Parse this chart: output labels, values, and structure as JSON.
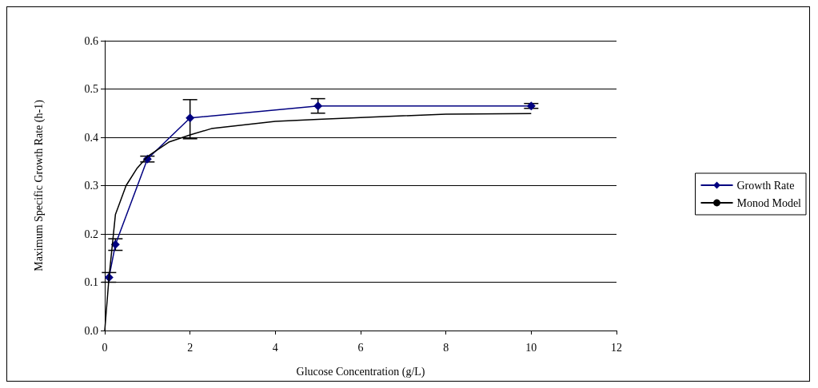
{
  "chart_data": {
    "type": "line",
    "xlabel": "Glucose Concentration (g/L)",
    "ylabel": "Maximum Specific Growth Rate (h-1)",
    "xlim": [
      0,
      12
    ],
    "xticks": [
      0,
      2,
      4,
      6,
      8,
      10,
      12
    ],
    "ylim": [
      0,
      0.6
    ],
    "yticks": [
      {
        "value": 0,
        "label": "0.0"
      },
      0.1,
      0.2,
      0.3,
      0.4,
      0.5,
      0.6
    ],
    "grid": "y",
    "legend": "right",
    "marker": "diamond",
    "line_style": "solid",
    "series": [
      {
        "name": "Growth Rate",
        "color": "#000080",
        "x": [
          0.1,
          0.25,
          1,
          2,
          5,
          10
        ],
        "values": [
          0.11,
          0.178,
          0.355,
          0.44,
          0.465,
          0.465
        ],
        "errors": [
          0.01,
          0.012,
          0.006,
          [
            0.397,
            0.478
          ],
          0.015,
          0.005
        ]
      },
      {
        "name": "Monod Model",
        "color": "#000000",
        "marker": "none",
        "x": [
          0,
          0.1,
          0.25,
          0.5,
          0.75,
          1,
          1.5,
          2,
          2.5,
          3,
          3.5,
          4,
          5,
          6,
          8,
          10
        ],
        "values": [
          0,
          0.11,
          0.24,
          0.3,
          0.335,
          0.36,
          0.39,
          0.405,
          0.418,
          0.423,
          0.428,
          0.433,
          0.437,
          0.441,
          0.448,
          0.449
        ]
      }
    ]
  }
}
